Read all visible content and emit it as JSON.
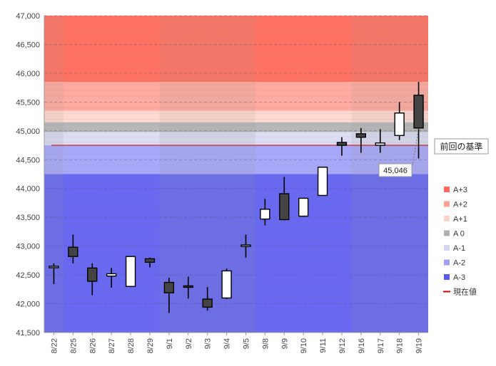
{
  "chart_data": {
    "type": "candlestick",
    "ylim": [
      41500,
      47000
    ],
    "y_ticks": [
      "41,500",
      "42,000",
      "42,500",
      "43,000",
      "43,500",
      "44,000",
      "44,500",
      "45,000",
      "45,500",
      "46,000",
      "46,500",
      "47,000"
    ],
    "categories": [
      "8/22",
      "8/25",
      "8/26",
      "8/27",
      "8/28",
      "8/29",
      "9/1",
      "9/2",
      "9/3",
      "9/4",
      "9/5",
      "9/8",
      "9/9",
      "9/10",
      "9/11",
      "9/12",
      "9/16",
      "9/17",
      "9/18",
      "9/19"
    ],
    "candles": [
      {
        "open": 42630,
        "close": 42650,
        "high": 42700,
        "low": 42340
      },
      {
        "open": 42980,
        "close": 42820,
        "high": 43200,
        "low": 42700
      },
      {
        "open": 42620,
        "close": 42390,
        "high": 42700,
        "low": 42150
      },
      {
        "open": 42480,
        "close": 42520,
        "high": 42620,
        "low": 42280
      },
      {
        "open": 42300,
        "close": 42820,
        "high": 42830,
        "low": 42290
      },
      {
        "open": 42780,
        "close": 42720,
        "high": 42800,
        "low": 42630
      },
      {
        "open": 42370,
        "close": 42190,
        "high": 42450,
        "low": 41840
      },
      {
        "open": 42310,
        "close": 42300,
        "high": 42470,
        "low": 42090
      },
      {
        "open": 42080,
        "close": 41940,
        "high": 42290,
        "low": 41880
      },
      {
        "open": 42100,
        "close": 42570,
        "high": 42610,
        "low": 42080
      },
      {
        "open": 43000,
        "close": 43020,
        "high": 43200,
        "low": 42800
      },
      {
        "open": 43470,
        "close": 43640,
        "high": 43820,
        "low": 43360
      },
      {
        "open": 43910,
        "close": 43460,
        "high": 44200,
        "low": 43450
      },
      {
        "open": 43520,
        "close": 43830,
        "high": 43840,
        "low": 43510
      },
      {
        "open": 43880,
        "close": 44370,
        "high": 44380,
        "low": 43870
      },
      {
        "open": 44800,
        "close": 44750,
        "high": 44890,
        "low": 44570
      },
      {
        "open": 44950,
        "close": 44890,
        "high": 45050,
        "low": 44620
      },
      {
        "open": 44750,
        "close": 44790,
        "high": 45030,
        "low": 44620
      },
      {
        "open": 44920,
        "close": 45310,
        "high": 45500,
        "low": 44840
      },
      {
        "open": 45620,
        "close": 45050,
        "high": 45850,
        "low": 44520
      }
    ],
    "bands": [
      {
        "name": "A+3",
        "from": 45850,
        "to": 47000,
        "color": "#ff7160"
      },
      {
        "name": "A+2",
        "from": 45350,
        "to": 45850,
        "color": "#ffaa9e"
      },
      {
        "name": "A+1",
        "from": 45150,
        "to": 45350,
        "color": "#ffd9d0"
      },
      {
        "name": "A 0",
        "from": 44980,
        "to": 45150,
        "color": "#b7b7b7"
      },
      {
        "name": "A-1",
        "from": 44750,
        "to": 44980,
        "color": "#dcdcf4"
      },
      {
        "name": "A-2",
        "from": 44250,
        "to": 44750,
        "color": "#a8a8f8"
      },
      {
        "name": "A-3",
        "from": 41500,
        "to": 44250,
        "color": "#6868f0"
      }
    ],
    "current_value_line": {
      "value": 44750,
      "color": "#cc0000"
    },
    "legend": [
      {
        "label": "A+3",
        "color": "#ff6b5b",
        "kind": "box"
      },
      {
        "label": "A+2",
        "color": "#ffa294",
        "kind": "box"
      },
      {
        "label": "A+1",
        "color": "#ffd2c8",
        "kind": "box"
      },
      {
        "label": "A 0",
        "color": "#b0b0b0",
        "kind": "box"
      },
      {
        "label": "A-1",
        "color": "#d4d4f4",
        "kind": "box"
      },
      {
        "label": "A-2",
        "color": "#9e9ef5",
        "kind": "box"
      },
      {
        "label": "A-3",
        "color": "#5a5aee",
        "kind": "box"
      },
      {
        "label": "現在値",
        "color": "#cc0000",
        "kind": "line"
      }
    ],
    "callouts": {
      "base_label": "前回の基準",
      "current_label": "45,046",
      "current_value": 45046
    }
  }
}
